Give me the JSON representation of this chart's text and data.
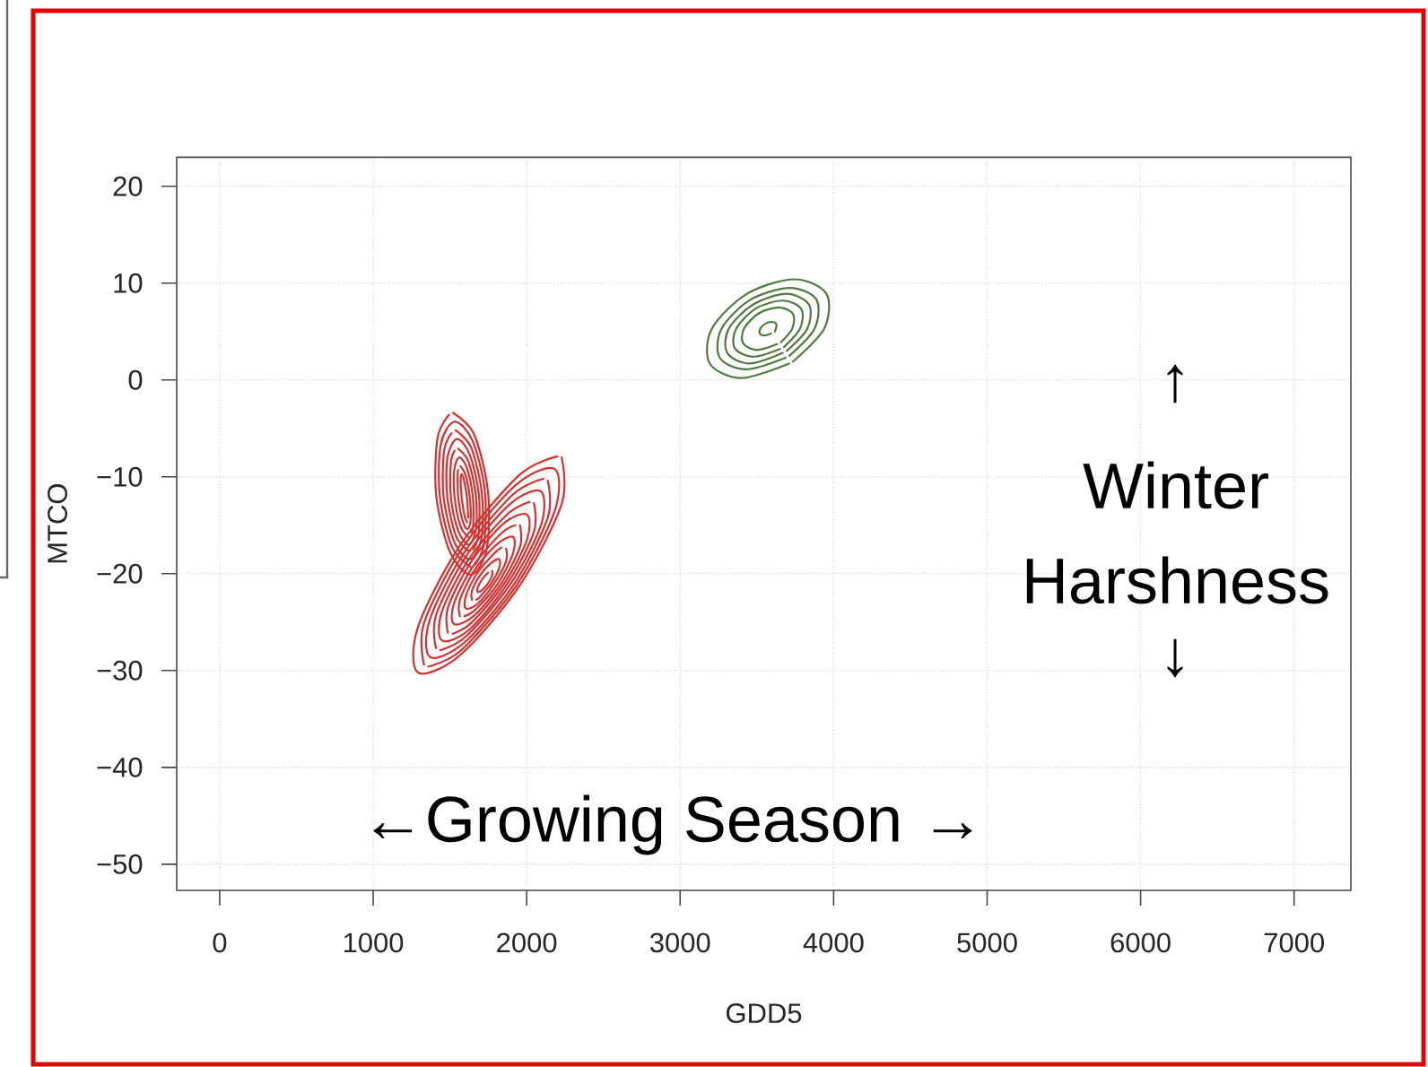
{
  "chart_data": {
    "type": "line",
    "xlabel": "GDD5",
    "ylabel": "MTCO",
    "xlim": [
      -280,
      7370
    ],
    "ylim": [
      -52.7,
      23
    ],
    "xticks": [
      0,
      1000,
      2000,
      3000,
      4000,
      5000,
      6000,
      7000
    ],
    "yticks": [
      {
        "value": -50,
        "label": "−50"
      },
      {
        "value": -40,
        "label": "−40"
      },
      {
        "value": -30,
        "label": "−30"
      },
      {
        "value": -20,
        "label": "−20"
      },
      {
        "value": -10,
        "label": "−10"
      },
      0,
      10,
      20
    ],
    "grid": true,
    "annotations": [
      "↑",
      "Winter Harshness",
      "↓",
      "←Growing Season →"
    ],
    "series": [
      {
        "color": "#4e7a3e",
        "x": [
          3710,
          3401,
          3193,
          3207,
          3436,
          3745,
          3953,
          3939,
          3735
        ],
        "values": [
          1.7,
          0.2,
          1.7,
          5.3,
          8.9,
          10.4,
          8.9,
          5.3,
          1.9
        ]
      },
      {
        "color": "#4e7a3e",
        "x": [
          3687,
          3430,
          3258,
          3270,
          3459,
          3716,
          3888,
          3876,
          3712
        ],
        "values": [
          2.3,
          1.1,
          2.3,
          5.3,
          8.3,
          9.5,
          8.3,
          5.3,
          2.5
        ]
      },
      {
        "color": "#4e7a3e",
        "x": [
          3669,
          3453,
          3307,
          3317,
          3477,
          3693,
          3839,
          3829,
          3694
        ],
        "values": [
          2.8,
          1.7,
          2.8,
          5.3,
          7.8,
          8.9,
          7.8,
          5.3,
          3.0
        ]
      },
      {
        "color": "#4e7a3e",
        "x": [
          3651,
          3475,
          3356,
          3365,
          3495,
          3671,
          3790,
          3781,
          3676
        ],
        "values": [
          3.2,
          2.4,
          3.3,
          5.3,
          7.4,
          8.2,
          7.3,
          5.3,
          3.4
        ]
      },
      {
        "color": "#4e7a3e",
        "x": [
          3632,
          3499,
          3410,
          3416,
          3514,
          3647,
          3736,
          3730,
          3657
        ],
        "values": [
          3.7,
          3.1,
          3.8,
          5.3,
          6.9,
          7.5,
          6.8,
          5.3,
          3.9
        ]
      },
      {
        "color": "#4e7a3e",
        "x": [
          3592,
          3549,
          3520,
          3522,
          3554,
          3597,
          3626,
          3624,
          3617
        ],
        "values": [
          4.8,
          4.6,
          4.8,
          5.3,
          5.8,
          6.0,
          5.8,
          5.3,
          5.0
        ]
      },
      {
        "color": "#d63030",
        "x": [
          1521,
          1657,
          1747,
          1740,
          1638,
          1501,
          1411,
          1419,
          1493
        ],
        "values": [
          -3.4,
          -5.6,
          -11.4,
          -17.4,
          -20.1,
          -17.8,
          -12.0,
          -6.0,
          -3.6
        ]
      },
      {
        "color": "#d63030",
        "x": [
          1634,
          1515,
          1435,
          1440,
          1529,
          1648,
          1728,
          1722,
          1662
        ],
        "values": [
          -19.3,
          -17.3,
          -12.1,
          -6.7,
          -4.3,
          -6.3,
          -11.5,
          -16.9,
          -19.1
        ]
      },
      {
        "color": "#d63030",
        "x": [
          1537,
          1639,
          1708,
          1705,
          1630,
          1528,
          1459,
          1462,
          1510
        ],
        "values": [
          -5.2,
          -7.0,
          -11.7,
          -16.4,
          -18.5,
          -16.7,
          -12.1,
          -7.3,
          -5.5
        ]
      },
      {
        "color": "#d63030",
        "x": [
          1626,
          1542,
          1483,
          1484,
          1545,
          1629,
          1688,
          1687,
          1651
        ],
        "values": [
          -17.7,
          -16.2,
          -12.1,
          -8.0,
          -6.1,
          -7.7,
          -11.8,
          -15.9,
          -17.5
        ]
      },
      {
        "color": "#d63030",
        "x": [
          1553,
          1620,
          1669,
          1670,
          1623,
          1555,
          1507,
          1506,
          1530
        ],
        "values": [
          -7.1,
          -8.4,
          -11.9,
          -15.4,
          -17.0,
          -15.6,
          -12.2,
          -8.6,
          -7.3
        ]
      },
      {
        "color": "#d63030",
        "x": [
          1619,
          1569,
          1531,
          1528,
          1561,
          1611,
          1649,
          1652,
          1640
        ],
        "values": [
          -16.2,
          -15.1,
          -12.2,
          -9.3,
          -8.0,
          -9.1,
          -12.0,
          -14.9,
          -15.8
        ]
      },
      {
        "color": "#d63030",
        "x": [
          1569,
          1602,
          1629,
          1635,
          1615,
          1582,
          1555,
          1550,
          1554
        ],
        "values": [
          -8.9,
          -9.8,
          -12.1,
          -14.4,
          -15.4,
          -14.5,
          -12.2,
          -9.9,
          -9.3
        ]
      },
      {
        "color": "#d63030",
        "x": [
          1612,
          1595,
          1578,
          1570,
          1577,
          1594,
          1611,
          1619,
          1618
        ],
        "values": [
          -14.7,
          -14.0,
          -12.3,
          -10.5,
          -9.7,
          -10.5,
          -12.2,
          -14.0,
          -14.2
        ]
      },
      {
        "color": "#d63030",
        "x": [
          2228,
          2228,
          1955,
          1567,
          1292,
          1292,
          1565,
          1953,
          2200
        ],
        "values": [
          -8.0,
          -12.8,
          -21.2,
          -28.4,
          -30.2,
          -25.5,
          -17.1,
          -9.8,
          -7.9
        ]
      },
      {
        "color": "#d63030",
        "x": [
          1331,
          1331,
          1580,
          1933,
          2183,
          2183,
          1934,
          1581,
          1359
        ],
        "values": [
          -29.4,
          -25.1,
          -17.4,
          -10.8,
          -9.2,
          -13.5,
          -21.2,
          -27.8,
          -29.6
        ]
      },
      {
        "color": "#d63030",
        "x": [
          2137,
          2138,
          1913,
          1595,
          1370,
          1370,
          1594,
          1912,
          2109
        ],
        "values": [
          -10.4,
          -14.2,
          -21.2,
          -27.1,
          -28.6,
          -24.7,
          -17.8,
          -11.8,
          -10.2
        ]
      },
      {
        "color": "#d63030",
        "x": [
          1409,
          1409,
          1609,
          1892,
          2092,
          2093,
          1893,
          1610,
          1438
        ],
        "values": [
          -27.7,
          -24.3,
          -18.1,
          -12.8,
          -11.5,
          -15.0,
          -21.1,
          -26.4,
          -27.9
        ]
      },
      {
        "color": "#d63030",
        "x": [
          2047,
          2047,
          1872,
          1624,
          1448,
          1448,
          1623,
          1871,
          2018
        ],
        "values": [
          -12.7,
          -15.7,
          -21.1,
          -25.8,
          -26.9,
          -23.9,
          -18.5,
          -13.9,
          -12.6
        ]
      },
      {
        "color": "#d63030",
        "x": [
          1487,
          1487,
          1637,
          1851,
          2002,
          2002,
          1851,
          1638,
          1517
        ],
        "values": [
          -26.1,
          -23.5,
          -18.8,
          -14.8,
          -13.9,
          -16.5,
          -21.1,
          -25.1,
          -26.2
        ]
      },
      {
        "color": "#d63030",
        "x": [
          1956,
          1957,
          1831,
          1652,
          1526,
          1526,
          1652,
          1830,
          1926
        ],
        "values": [
          -15.0,
          -17.2,
          -21.1,
          -24.4,
          -25.2,
          -23.1,
          -19.2,
          -15.9,
          -15.0
        ]
      },
      {
        "color": "#d63030",
        "x": [
          1565,
          1565,
          1666,
          1810,
          1911,
          1911,
          1810,
          1667,
          1595
        ],
        "values": [
          -24.4,
          -22.7,
          -19.5,
          -16.9,
          -16.2,
          -17.9,
          -21.1,
          -23.7,
          -24.4
        ]
      },
      {
        "color": "#d63030",
        "x": [
          1866,
          1866,
          1789,
          1681,
          1604,
          1604,
          1680,
          1789,
          1836
        ],
        "values": [
          -17.4,
          -18.7,
          -21.0,
          -23.1,
          -23.6,
          -22.3,
          -19.9,
          -17.9,
          -17.3
        ]
      },
      {
        "color": "#d63030",
        "x": [
          1643,
          1643,
          1695,
          1768,
          1821,
          1821,
          1769,
          1695,
          1671
        ],
        "values": [
          -22.7,
          -21.8,
          -20.2,
          -18.9,
          -18.5,
          -19.4,
          -21.0,
          -22.4,
          -22.7
        ]
      },
      {
        "color": "#d63030",
        "x": [
          1775,
          1775,
          1748,
          1709,
          1682,
          1682,
          1709,
          1748
        ],
        "values": [
          -19.7,
          -20.2,
          -21.0,
          -21.7,
          -21.9,
          -21.4,
          -20.6,
          -19.9
        ]
      }
    ]
  }
}
